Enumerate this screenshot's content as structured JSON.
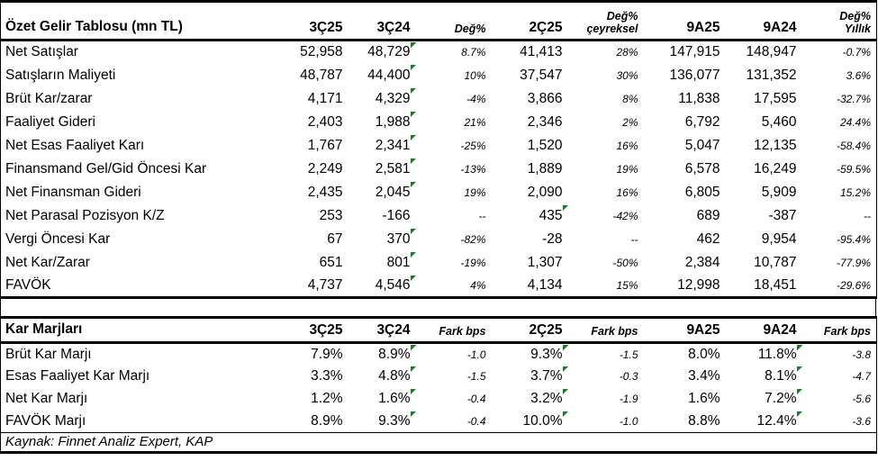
{
  "page": {
    "background": "#ffffff",
    "text_color": "#000000",
    "border_color": "#000000",
    "flag_color": "#1e7d1e",
    "source_note": "Kaynak: Finnet Analiz Expert, KAP"
  },
  "chart_data": [
    {
      "type": "table",
      "title": "Özet Gelir Tablosu (mn TL)",
      "columns": [
        {
          "label": "3Ç25",
          "italic": false
        },
        {
          "label": "3Ç24",
          "italic": false
        },
        {
          "label": "Değ%",
          "italic": true
        },
        {
          "label": "2Ç25",
          "italic": false
        },
        {
          "label": "Değ%\nçeyreksel",
          "italic": true
        },
        {
          "label": "9A25",
          "italic": false
        },
        {
          "label": "9A24",
          "italic": false
        },
        {
          "label": "Değ%\nYıllık",
          "italic": true
        }
      ],
      "rows": [
        {
          "label": "Net Satışlar",
          "values": [
            "52,958",
            "48,729",
            "8.7%",
            "41,413",
            "28%",
            "147,915",
            "148,947",
            "-0.7%"
          ],
          "flags": [
            1
          ]
        },
        {
          "label": "Satışların Maliyeti",
          "values": [
            "48,787",
            "44,400",
            "10%",
            "37,547",
            "30%",
            "136,077",
            "131,352",
            "3.6%"
          ],
          "flags": [
            1
          ]
        },
        {
          "label": "Brüt Kar/zarar",
          "values": [
            "4,171",
            "4,329",
            "-4%",
            "3,866",
            "8%",
            "11,838",
            "17,595",
            "-32.7%"
          ],
          "flags": [
            1
          ]
        },
        {
          "label": "Faaliyet Gideri",
          "values": [
            "2,403",
            "1,988",
            "21%",
            "2,346",
            "2%",
            "6,792",
            "5,460",
            "24.4%"
          ],
          "flags": [
            1
          ]
        },
        {
          "label": "Net Esas Faaliyet Karı",
          "values": [
            "1,767",
            "2,341",
            "-25%",
            "1,520",
            "16%",
            "5,047",
            "12,135",
            "-58.4%"
          ],
          "flags": [
            1
          ]
        },
        {
          "label": "Finansmand Gel/Gid Öncesi Kar",
          "values": [
            "2,249",
            "2,581",
            "-13%",
            "1,889",
            "19%",
            "6,578",
            "16,249",
            "-59.5%"
          ],
          "flags": [
            1
          ]
        },
        {
          "label": "Net Finansman Gideri",
          "values": [
            "2,435",
            "2,045",
            "19%",
            "2,090",
            "16%",
            "6,805",
            "5,909",
            "15.2%"
          ],
          "flags": [
            1
          ]
        },
        {
          "label": "Net Parasal Pozisyon K/Z",
          "values": [
            "253",
            "-166",
            "--",
            "435",
            "-42%",
            "689",
            "-387",
            "--"
          ],
          "flags": [
            3
          ]
        },
        {
          "label": "Vergi Öncesi Kar",
          "values": [
            "67",
            "370",
            "-82%",
            "-28",
            "--",
            "462",
            "9,954",
            "-95.4%"
          ],
          "flags": [
            1
          ]
        },
        {
          "label": "Net Kar/Zarar",
          "values": [
            "651",
            "801",
            "-19%",
            "1,307",
            "-50%",
            "2,384",
            "10,787",
            "-77.9%"
          ],
          "flags": [
            1
          ]
        },
        {
          "label": "FAVÖK",
          "values": [
            "4,737",
            "4,546",
            "4%",
            "4,134",
            "15%",
            "12,998",
            "18,451",
            "-29.6%"
          ],
          "flags": [
            1
          ]
        }
      ]
    },
    {
      "type": "table",
      "title": "Kar Marjları",
      "columns": [
        {
          "label": "3Ç25",
          "italic": false
        },
        {
          "label": "3Ç24",
          "italic": false
        },
        {
          "label": "Fark bps",
          "italic": true
        },
        {
          "label": "2Ç25",
          "italic": false
        },
        {
          "label": "Fark bps",
          "italic": true
        },
        {
          "label": "9A25",
          "italic": false
        },
        {
          "label": "9A24",
          "italic": false
        },
        {
          "label": "Fark bps",
          "italic": true
        }
      ],
      "rows": [
        {
          "label": "Brüt Kar Marjı",
          "values": [
            "7.9%",
            "8.9%",
            "-1.0",
            "9.3%",
            "-1.5",
            "8.0%",
            "11.8%",
            "-3.8"
          ],
          "flags": [
            1,
            3,
            6
          ]
        },
        {
          "label": "Esas Faaliyet Kar Marjı",
          "values": [
            "3.3%",
            "4.8%",
            "-1.5",
            "3.7%",
            "-0.3",
            "3.4%",
            "8.1%",
            "-4.7"
          ],
          "flags": [
            1,
            3,
            6
          ]
        },
        {
          "label": "Net Kar Marjı",
          "values": [
            "1.2%",
            "1.6%",
            "-0.4",
            "3.2%",
            "-1.9",
            "1.6%",
            "7.2%",
            "-5.6"
          ],
          "flags": [
            1,
            3,
            6
          ]
        },
        {
          "label": "FAVÖK Marjı",
          "values": [
            "8.9%",
            "9.3%",
            "-0.4",
            "10.0%",
            "-1.0",
            "8.8%",
            "12.4%",
            "-3.6"
          ],
          "flags": [
            1,
            3,
            6
          ]
        }
      ]
    }
  ]
}
